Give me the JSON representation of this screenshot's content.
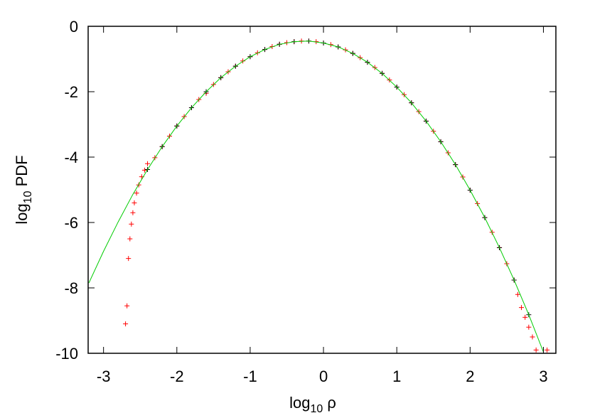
{
  "chart_data": {
    "type": "scatter",
    "xlabel": [
      "log",
      "10",
      " ρ"
    ],
    "ylabel": [
      "log",
      "10",
      " PDF"
    ],
    "xlim": [
      -3.21,
      3.17
    ],
    "ylim": [
      -10,
      0
    ],
    "xticks": [
      -3,
      -2,
      -1,
      0,
      1,
      2,
      3
    ],
    "yticks": [
      0,
      -2,
      -4,
      -6,
      -8,
      -10
    ],
    "series": [
      {
        "color": "#ff0000",
        "style": "points",
        "x": [
          -2.7,
          -2.68,
          -2.66,
          -2.64,
          -2.62,
          -2.6,
          -2.58,
          -2.55,
          -2.52,
          -2.48,
          -2.44,
          -2.4,
          -2.3,
          -2.2,
          -2.1,
          -2.0,
          -1.9,
          -1.8,
          -1.7,
          -1.6,
          -1.5,
          -1.4,
          -1.3,
          -1.2,
          -1.1,
          -1.0,
          -0.9,
          -0.8,
          -0.7,
          -0.6,
          -0.5,
          -0.4,
          -0.3,
          -0.2,
          -0.1,
          0,
          0.1,
          0.2,
          0.3,
          0.4,
          0.5,
          0.6,
          0.7,
          0.8,
          0.9,
          1.0,
          1.1,
          1.2,
          1.3,
          1.4,
          1.5,
          1.6,
          1.7,
          1.8,
          1.9,
          2.0,
          2.1,
          2.2,
          2.3,
          2.4,
          2.5,
          2.6,
          2.65,
          2.7,
          2.75,
          2.8,
          2.85,
          2.9,
          3.05
        ],
        "values": [
          -9.1,
          -8.55,
          -7.1,
          -6.5,
          -6.05,
          -5.7,
          -5.4,
          -5.1,
          -4.85,
          -4.6,
          -4.4,
          -4.2,
          -4.02,
          -3.68,
          -3.36,
          -3.05,
          -2.76,
          -2.49,
          -2.24,
          -2.05,
          -1.78,
          -1.57,
          -1.39,
          -1.22,
          -1.06,
          -0.93,
          -0.81,
          -0.71,
          -0.62,
          -0.55,
          -0.5,
          -0.47,
          -0.45,
          -0.45,
          -0.47,
          -0.51,
          -0.56,
          -0.63,
          -0.72,
          -0.83,
          -0.96,
          -1.1,
          -1.26,
          -1.44,
          -1.64,
          -1.86,
          -2.09,
          -2.34,
          -2.61,
          -2.9,
          -3.21,
          -3.53,
          -3.87,
          -4.23,
          -4.61,
          -5.01,
          -5.42,
          -5.85,
          -6.3,
          -6.77,
          -7.26,
          -7.76,
          -8.2,
          -8.6,
          -8.9,
          -9.2,
          -9.5,
          -9.9,
          -9.9
        ]
      },
      {
        "color": "#000000",
        "style": "points",
        "x": [
          -2.4,
          -2.2,
          -2.0,
          -1.8,
          -1.6,
          -1.4,
          -1.2,
          -1.0,
          -0.8,
          -0.6,
          -0.4,
          -0.2,
          0,
          0.2,
          0.4,
          0.6,
          0.8,
          1.0,
          1.2,
          1.4,
          1.6,
          1.8,
          2.0,
          2.2,
          2.4,
          2.6,
          2.8
        ],
        "values": [
          -4.38,
          -3.68,
          -3.05,
          -2.49,
          -2.0,
          -1.57,
          -1.22,
          -0.93,
          -0.71,
          -0.55,
          -0.47,
          -0.45,
          -0.51,
          -0.63,
          -0.83,
          -1.1,
          -1.44,
          -1.86,
          -2.34,
          -2.9,
          -3.53,
          -4.23,
          -5.01,
          -5.85,
          -6.77,
          -7.76,
          -8.82
        ]
      },
      {
        "color": "#00cc00",
        "style": "line",
        "x": [
          -3.2,
          -3.0,
          -2.8,
          -2.6,
          -2.4,
          -2.2,
          -2.0,
          -1.8,
          -1.6,
          -1.4,
          -1.2,
          -1.0,
          -0.8,
          -0.6,
          -0.4,
          -0.2,
          0,
          0.2,
          0.4,
          0.6,
          0.8,
          1.0,
          1.2,
          1.4,
          1.6,
          1.8,
          2.0,
          2.2,
          2.4,
          2.6,
          2.8,
          3.0
        ],
        "values": [
          -7.85,
          -6.88,
          -5.98,
          -5.14,
          -4.38,
          -3.68,
          -3.05,
          -2.49,
          -2.0,
          -1.57,
          -1.22,
          -0.93,
          -0.71,
          -0.55,
          -0.47,
          -0.45,
          -0.51,
          -0.63,
          -0.83,
          -1.1,
          -1.44,
          -1.86,
          -2.34,
          -2.9,
          -3.53,
          -4.23,
          -5.01,
          -5.85,
          -6.77,
          -7.76,
          -8.82,
          -9.96
        ]
      }
    ]
  }
}
